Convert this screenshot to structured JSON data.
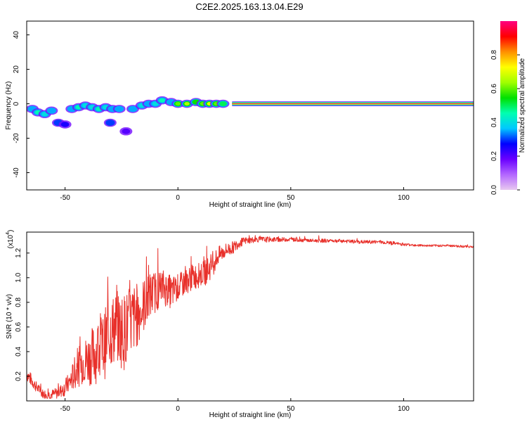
{
  "title": "C2E2.2025.163.13.04.E29",
  "chart_data": [
    {
      "type": "heatmap",
      "name": "spectrogram",
      "xlabel": "Height of straight line (km)",
      "ylabel": "Frequency (Hz)",
      "xlim": [
        -67,
        131
      ],
      "ylim": [
        -50,
        48
      ],
      "xticks": [
        -50,
        0,
        50,
        100
      ],
      "xtick_labels": [
        "-50",
        "0",
        "50",
        "100"
      ],
      "yticks": [
        40,
        20,
        0,
        -20,
        -40
      ],
      "ytick_labels": [
        "40",
        "20",
        "0",
        "-20",
        "-40"
      ],
      "colorbar": {
        "label": "Normalized spectral amplitude",
        "range": [
          0,
          1
        ],
        "ticks": [
          0.0,
          0.2,
          0.4,
          0.6,
          0.8
        ],
        "tick_labels": [
          "0.0",
          "0.2",
          "0.4",
          "0.6",
          "0.8"
        ],
        "colormap": [
          "#e8c8f0",
          "#b366ff",
          "#6a00ff",
          "#0000ff",
          "#00c8ff",
          "#00ffb0",
          "#00e000",
          "#a0ff00",
          "#ffff00",
          "#ff9000",
          "#ff0000",
          "#ff0080"
        ]
      },
      "tone_band": {
        "x_from": 24,
        "x_to": 131,
        "freq": 0.0,
        "amplitude": 0.97
      },
      "blobs": [
        {
          "x": -64.5,
          "f": -3,
          "amp": 0.35
        },
        {
          "x": -62,
          "f": -5,
          "amp": 0.45
        },
        {
          "x": -59,
          "f": -6,
          "amp": 0.4
        },
        {
          "x": -56,
          "f": -4,
          "amp": 0.35
        },
        {
          "x": -53,
          "f": -11,
          "amp": 0.3
        },
        {
          "x": -50,
          "f": -12,
          "amp": 0.25
        },
        {
          "x": -47,
          "f": -3,
          "amp": 0.35
        },
        {
          "x": -44,
          "f": -2,
          "amp": 0.45
        },
        {
          "x": -41,
          "f": -1,
          "amp": 0.4
        },
        {
          "x": -38,
          "f": -2,
          "amp": 0.4
        },
        {
          "x": -35,
          "f": -3,
          "amp": 0.45
        },
        {
          "x": -32,
          "f": -2,
          "amp": 0.4
        },
        {
          "x": -30,
          "f": -11,
          "amp": 0.3
        },
        {
          "x": -29,
          "f": -3,
          "amp": 0.35
        },
        {
          "x": -26,
          "f": -3,
          "amp": 0.35
        },
        {
          "x": -23,
          "f": -16,
          "amp": 0.2
        },
        {
          "x": -20,
          "f": -3,
          "amp": 0.35
        },
        {
          "x": -16,
          "f": -1,
          "amp": 0.4
        },
        {
          "x": -13,
          "f": 0,
          "amp": 0.35
        },
        {
          "x": -10,
          "f": 0,
          "amp": 0.4
        },
        {
          "x": -7,
          "f": 2,
          "amp": 0.45
        },
        {
          "x": -3,
          "f": 1,
          "amp": 0.35
        },
        {
          "x": 0,
          "f": 0,
          "amp": 0.6
        },
        {
          "x": 4,
          "f": 0,
          "amp": 0.65
        },
        {
          "x": 8,
          "f": 1,
          "amp": 0.55
        },
        {
          "x": 11,
          "f": 0,
          "amp": 0.6
        },
        {
          "x": 14,
          "f": 0,
          "amp": 0.7
        },
        {
          "x": 17,
          "f": 0,
          "amp": 0.6
        },
        {
          "x": 20,
          "f": 0,
          "amp": 0.5
        }
      ]
    },
    {
      "type": "line",
      "name": "snr",
      "xlabel": "Height of straight line (km)",
      "ylabel": "SNR (10 * v/v)",
      "scale_label": "(x10",
      "scale_exponent": "4",
      "xlim": [
        -67,
        131
      ],
      "ylim": [
        0.0,
        1.37
      ],
      "xticks": [
        -50,
        0,
        50,
        100
      ],
      "xtick_labels": [
        "-50",
        "0",
        "50",
        "100"
      ],
      "yticks": [
        0.2,
        0.4,
        0.6,
        0.8,
        1.0,
        1.2
      ],
      "ytick_labels": [
        "0.2",
        "0.4",
        "0.6",
        "0.8",
        "1.0",
        "1.2"
      ],
      "color": "#e8302a",
      "series": [
        {
          "name": "SNR",
          "x": [
            -67,
            -63,
            -60,
            -57,
            -54,
            -51,
            -48,
            -45,
            -42,
            -39,
            -36,
            -33,
            -30,
            -27,
            -24,
            -21,
            -18,
            -15,
            -12,
            -9,
            -6,
            -3,
            0,
            3,
            6,
            9,
            12,
            15,
            18,
            21,
            24,
            27,
            30,
            35,
            40,
            50,
            60,
            70,
            80,
            90,
            95,
            100,
            110,
            120,
            131
          ],
          "values": [
            0.22,
            0.12,
            0.06,
            0.05,
            0.06,
            0.09,
            0.15,
            0.25,
            0.32,
            0.35,
            0.4,
            0.44,
            0.56,
            0.6,
            0.56,
            0.64,
            0.7,
            0.78,
            0.86,
            0.9,
            0.92,
            0.88,
            0.92,
            0.96,
            1.0,
            1.02,
            1.04,
            1.1,
            1.18,
            1.22,
            1.24,
            1.28,
            1.3,
            1.31,
            1.31,
            1.31,
            1.3,
            1.3,
            1.29,
            1.29,
            1.28,
            1.27,
            1.26,
            1.26,
            1.25
          ],
          "noise": [
            0.08,
            0.06,
            0.05,
            0.05,
            0.06,
            0.08,
            0.12,
            0.2,
            0.24,
            0.3,
            0.35,
            0.38,
            0.4,
            0.4,
            0.42,
            0.4,
            0.35,
            0.3,
            0.25,
            0.22,
            0.2,
            0.18,
            0.15,
            0.14,
            0.14,
            0.14,
            0.14,
            0.14,
            0.1,
            0.08,
            0.07,
            0.05,
            0.04,
            0.03,
            0.03,
            0.02,
            0.02,
            0.02,
            0.02,
            0.02,
            0.02,
            0.015,
            0.012,
            0.012,
            0.012
          ]
        }
      ]
    }
  ]
}
